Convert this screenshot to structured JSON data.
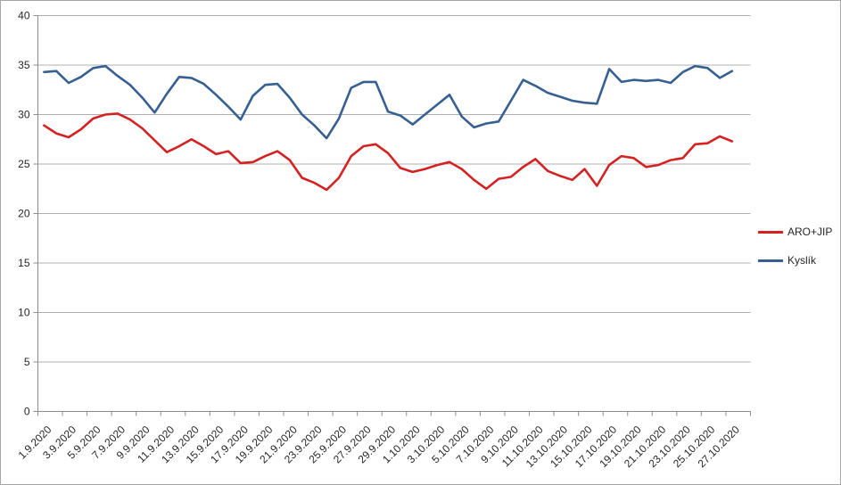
{
  "frame": {
    "background_color": "#ffffff",
    "border_color": "#a6a6a6",
    "grid_color": "#b0b0b0",
    "axis_color": "#8c8c8c",
    "text_color": "#262626"
  },
  "legend": {
    "position": "right-middle"
  },
  "chart_data": {
    "type": "line",
    "title": "",
    "xlabel": "",
    "ylabel": "",
    "ylim": [
      0,
      40
    ],
    "y_ticks": [
      0,
      5,
      10,
      15,
      20,
      25,
      30,
      35,
      40
    ],
    "grid": true,
    "legend_position": "right",
    "x": [
      "1.9.2020",
      "2.9.2020",
      "3.9.2020",
      "4.9.2020",
      "5.9.2020",
      "6.9.2020",
      "7.9.2020",
      "8.9.2020",
      "9.9.2020",
      "10.9.2020",
      "11.9.2020",
      "12.9.2020",
      "13.9.2020",
      "14.9.2020",
      "15.9.2020",
      "16.9.2020",
      "17.9.2020",
      "18.9.2020",
      "19.9.2020",
      "20.9.2020",
      "21.9.2020",
      "22.9.2020",
      "23.9.2020",
      "24.9.2020",
      "25.9.2020",
      "26.9.2020",
      "27.9.2020",
      "28.9.2020",
      "29.9.2020",
      "30.9.2020",
      "1.10.2020",
      "2.10.2020",
      "3.10.2020",
      "4.10.2020",
      "5.10.2020",
      "6.10.2020",
      "7.10.2020",
      "8.10.2020",
      "9.10.2020",
      "10.10.2020",
      "11.10.2020",
      "12.10.2020",
      "13.10.2020",
      "14.10.2020",
      "15.10.2020",
      "16.10.2020",
      "17.10.2020",
      "18.10.2020",
      "19.10.2020",
      "20.10.2020",
      "21.10.2020",
      "22.10.2020",
      "23.10.2020",
      "24.10.2020",
      "25.10.2020",
      "26.10.2020",
      "27.10.2020"
    ],
    "x_tick_labels": [
      "1.9.2020",
      "3.9.2020",
      "5.9.2020",
      "7.9.2020",
      "9.9.2020",
      "11.9.2020",
      "13.9.2020",
      "15.9.2020",
      "17.9.2020",
      "19.9.2020",
      "21.9.2020",
      "23.9.2020",
      "25.9.2020",
      "27.9.2020",
      "29.9.2020",
      "1.10.2020",
      "3.10.2020",
      "5.10.2020",
      "7.10.2020",
      "9.10.2020",
      "11.10.2020",
      "13.10.2020",
      "15.10.2020",
      "17.10.2020",
      "19.10.2020",
      "21.10.2020",
      "23.10.2020",
      "25.10.2020",
      "27.10.2020"
    ],
    "series": [
      {
        "name": "ARO+JIP",
        "color": "#d42222",
        "values": [
          28.9,
          28.1,
          27.7,
          28.5,
          29.6,
          30.0,
          30.1,
          29.5,
          28.6,
          27.4,
          26.2,
          26.8,
          27.5,
          26.8,
          26.0,
          26.3,
          25.1,
          25.2,
          25.8,
          26.3,
          25.4,
          23.6,
          23.1,
          22.4,
          23.6,
          25.8,
          26.8,
          27.0,
          26.1,
          24.6,
          24.2,
          24.5,
          24.9,
          25.2,
          24.5,
          23.4,
          22.5,
          23.5,
          23.7,
          24.7,
          25.5,
          24.3,
          23.8,
          23.4,
          24.5,
          22.8,
          24.9,
          25.8,
          25.6,
          24.7,
          24.9,
          25.4,
          25.6,
          27.0,
          27.1,
          27.8,
          27.3
        ]
      },
      {
        "name": "Kyslík",
        "color": "#376092",
        "values": [
          34.3,
          34.4,
          33.2,
          33.8,
          34.7,
          34.9,
          33.9,
          33.0,
          31.7,
          30.2,
          32.1,
          33.8,
          33.7,
          33.1,
          32.0,
          30.8,
          29.5,
          31.9,
          33.0,
          33.1,
          31.7,
          30.0,
          28.9,
          27.6,
          29.6,
          32.7,
          33.3,
          33.3,
          30.3,
          29.9,
          29.0,
          30.0,
          31.0,
          32.0,
          29.8,
          28.7,
          29.1,
          29.3,
          31.4,
          33.5,
          32.9,
          32.2,
          31.8,
          31.4,
          31.2,
          31.1,
          34.6,
          33.3,
          33.5,
          33.4,
          33.5,
          33.2,
          34.3,
          34.9,
          34.7,
          33.7,
          34.4
        ]
      }
    ]
  }
}
